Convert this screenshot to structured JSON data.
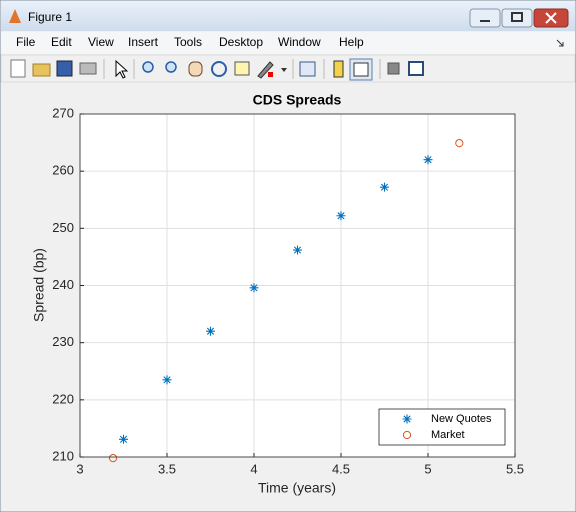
{
  "window": {
    "title": "Figure 1",
    "menu": [
      "File",
      "Edit",
      "View",
      "Insert",
      "Tools",
      "Desktop",
      "Window",
      "Help"
    ]
  },
  "chart_data": {
    "type": "scatter",
    "title": "CDS Spreads",
    "x_label": "Time (years)",
    "y_label": "Spread (bp)",
    "series": [
      {
        "name": "New Quotes",
        "color": "#0072bd",
        "marker": "asterisk",
        "x": [
          3.25,
          3.5,
          3.75,
          4,
          4.25,
          4.5,
          4.75,
          5
        ],
        "values": [
          213.1,
          223.5,
          232.0,
          239.6,
          246.2,
          252.2,
          257.2,
          262.0
        ]
      },
      {
        "name": "Market",
        "color": "#d95319",
        "marker": "circle",
        "x": [
          3.19,
          5.18
        ],
        "values": [
          209.8,
          264.9
        ]
      }
    ],
    "xlim": [
      3,
      5.5
    ],
    "xticks": [
      3,
      3.5,
      4,
      4.5,
      5,
      5.5
    ],
    "ylim": [
      210,
      270
    ],
    "yticks": [
      210,
      220,
      230,
      240,
      250,
      260,
      270
    ],
    "grid": true,
    "legend": "southeast"
  }
}
